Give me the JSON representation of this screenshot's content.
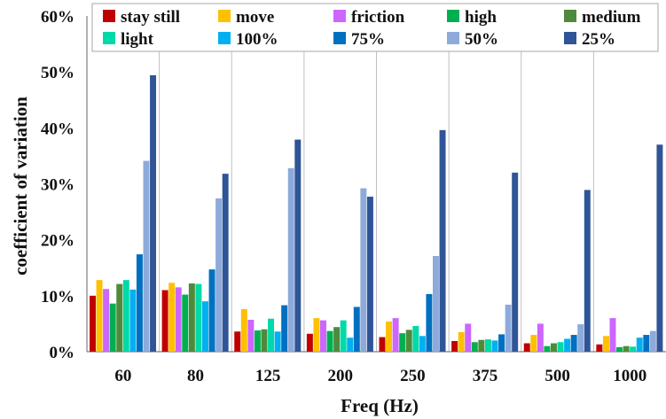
{
  "chart_data": {
    "type": "bar",
    "xlabel": "Freq (Hz)",
    "ylabel": "coefficient of variation",
    "ylim": [
      0,
      60
    ],
    "yticks": [
      "0%",
      "10%",
      "20%",
      "30%",
      "40%",
      "50%",
      "60%"
    ],
    "ytick_values": [
      0,
      10,
      20,
      30,
      40,
      50,
      60
    ],
    "grid": "vertical lines between categories",
    "legend_position": "top",
    "categories": [
      "60",
      "80",
      "125",
      "200",
      "250",
      "375",
      "500",
      "1000"
    ],
    "series": [
      {
        "name": "stay still",
        "color": "#c00000",
        "values": [
          10.0,
          11.0,
          3.6,
          3.2,
          2.6,
          1.9,
          1.5,
          1.3
        ]
      },
      {
        "name": "move",
        "color": "#ffc000",
        "values": [
          12.8,
          12.3,
          7.6,
          6.0,
          5.4,
          3.5,
          3.0,
          2.8
        ]
      },
      {
        "name": "friction",
        "color": "#cc66ff",
        "values": [
          11.2,
          11.5,
          5.7,
          5.6,
          6.0,
          5.0,
          5.0,
          6.0
        ]
      },
      {
        "name": "high",
        "color": "#00b050",
        "values": [
          8.6,
          10.2,
          3.8,
          3.7,
          3.3,
          1.7,
          1.0,
          0.8
        ]
      },
      {
        "name": "medium",
        "color": "#4f8a3c",
        "values": [
          12.1,
          12.2,
          4.0,
          4.4,
          3.9,
          2.1,
          1.5,
          1.0
        ]
      },
      {
        "name": "light",
        "color": "#00d9a8",
        "values": [
          12.8,
          12.1,
          5.9,
          5.6,
          4.6,
          2.2,
          1.7,
          0.9
        ]
      },
      {
        "name": "100%",
        "color": "#00b0f0",
        "values": [
          11.1,
          9.0,
          3.6,
          2.5,
          2.8,
          2.0,
          2.3,
          2.5
        ]
      },
      {
        "name": "75%",
        "color": "#0070c0",
        "values": [
          17.4,
          14.7,
          8.3,
          8.0,
          10.3,
          3.1,
          3.0,
          3.0
        ]
      },
      {
        "name": "50%",
        "color": "#8eaadb",
        "values": [
          34.1,
          27.4,
          32.8,
          29.2,
          17.1,
          8.4,
          4.9,
          3.7
        ]
      },
      {
        "name": "25%",
        "color": "#2f5597",
        "values": [
          49.4,
          31.8,
          37.9,
          27.7,
          39.6,
          32.0,
          28.9,
          37.0
        ]
      }
    ]
  }
}
